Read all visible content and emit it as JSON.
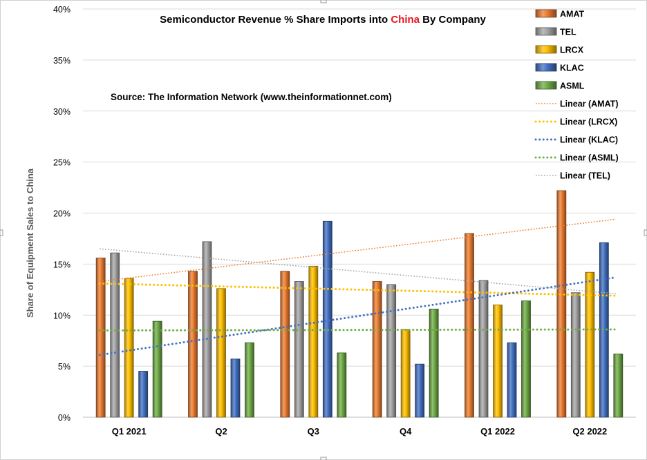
{
  "chart_data": {
    "type": "bar",
    "title_parts": [
      {
        "text": "Semiconductor Revenue % Share Imports into ",
        "color": "#000000"
      },
      {
        "text": "China",
        "color": "#e8141b"
      },
      {
        "text": " By Company",
        "color": "#000000"
      }
    ],
    "source": "Source: The Information Network (www.theinformationnet.com)",
    "ylabel": "Share of Equipment Sales to China",
    "xlabel": "",
    "ylim": [
      0,
      0.4
    ],
    "yticks": [
      0,
      0.05,
      0.1,
      0.15,
      0.2,
      0.25,
      0.3,
      0.35,
      0.4
    ],
    "ytick_labels": [
      "0%",
      "5%",
      "10%",
      "15%",
      "20%",
      "25%",
      "30%",
      "35%",
      "40%"
    ],
    "grid": true,
    "legend_position": "top-right",
    "categories": [
      "Q1 2021",
      "Q2",
      "Q3",
      "Q4",
      "Q1 2022",
      "Q2 2022"
    ],
    "series": [
      {
        "name": "AMAT",
        "color": "#ed7d31",
        "values": [
          0.156,
          0.143,
          0.143,
          0.133,
          0.18,
          0.222
        ]
      },
      {
        "name": "TEL",
        "color": "#a5a5a5",
        "values": [
          0.161,
          0.172,
          0.133,
          0.13,
          0.134,
          0.122
        ]
      },
      {
        "name": "LRCX",
        "color": "#ffc000",
        "values": [
          0.136,
          0.126,
          0.148,
          0.086,
          0.11,
          0.142
        ]
      },
      {
        "name": "KLAC",
        "color": "#4472c4",
        "values": [
          0.045,
          0.057,
          0.192,
          0.052,
          0.073,
          0.171
        ]
      },
      {
        "name": "ASML",
        "color": "#70ad47",
        "values": [
          0.094,
          0.073,
          0.063,
          0.106,
          0.114,
          0.062
        ]
      }
    ],
    "trendlines": [
      {
        "name": "Linear (AMAT)",
        "color": "#ed7d31",
        "dash": "fine",
        "start": 0.133,
        "end": 0.194
      },
      {
        "name": "Linear (LRCX)",
        "color": "#ffc000",
        "dash": "dot",
        "start": 0.131,
        "end": 0.119
      },
      {
        "name": "Linear (KLAC)",
        "color": "#4472c4",
        "dash": "dot",
        "start": 0.061,
        "end": 0.137
      },
      {
        "name": "Linear (ASML)",
        "color": "#70ad47",
        "dash": "dot",
        "start": 0.085,
        "end": 0.086
      },
      {
        "name": "Linear (TEL)",
        "color": "#a5a5a5",
        "dash": "fine",
        "start": 0.165,
        "end": 0.121
      }
    ]
  }
}
